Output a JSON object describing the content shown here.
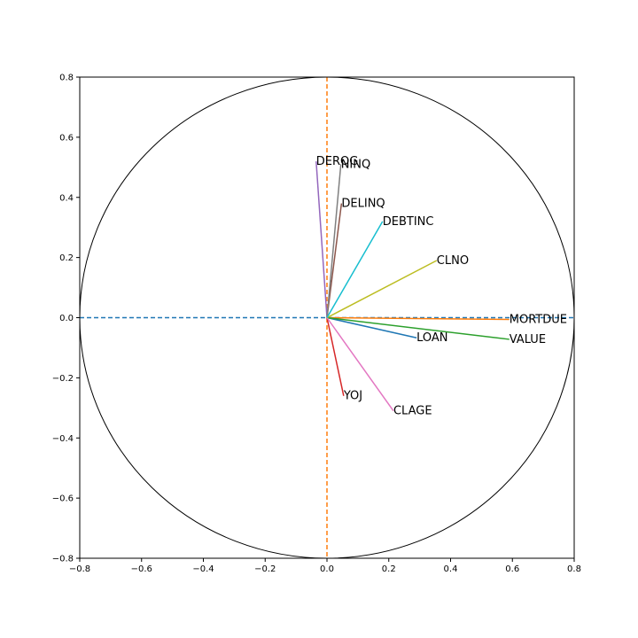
{
  "chart_data": {
    "type": "scatter",
    "title": "",
    "xlabel": "",
    "ylabel": "",
    "xlim": [
      -0.8,
      0.8
    ],
    "ylim": [
      -0.8,
      0.8
    ],
    "grid": false,
    "legend": "none",
    "xticks": [
      "−0.8",
      "−0.6",
      "−0.4",
      "−0.2",
      "0.0",
      "0.2",
      "0.4",
      "0.6",
      "0.8"
    ],
    "yticks": [
      "−0.8",
      "−0.6",
      "−0.4",
      "−0.2",
      "0.0",
      "0.2",
      "0.4",
      "0.6",
      "0.8"
    ],
    "unit_circle": {
      "radius": 0.8,
      "color": "#000000"
    },
    "reference_lines": [
      {
        "orientation": "horizontal",
        "value": 0.0,
        "style": "dashed",
        "color": "#1f77b4"
      },
      {
        "orientation": "vertical",
        "value": 0.0,
        "style": "dashed",
        "color": "#ff7f0e"
      }
    ],
    "vectors": [
      {
        "name": "LOAN",
        "x": 0.29,
        "y": -0.067,
        "color": "#1f77b4"
      },
      {
        "name": "MORTDUE",
        "x": 0.59,
        "y": -0.006,
        "color": "#ff7f0e"
      },
      {
        "name": "VALUE",
        "x": 0.59,
        "y": -0.072,
        "color": "#2ca02c"
      },
      {
        "name": "YOJ",
        "x": 0.054,
        "y": -0.26,
        "color": "#d62728"
      },
      {
        "name": "DEROG",
        "x": -0.035,
        "y": 0.52,
        "color": "#9467bd"
      },
      {
        "name": "DELINQ",
        "x": 0.047,
        "y": 0.38,
        "color": "#8c564b"
      },
      {
        "name": "CLAGE",
        "x": 0.215,
        "y": -0.31,
        "color": "#e377c2"
      },
      {
        "name": "NINQ",
        "x": 0.045,
        "y": 0.51,
        "color": "#7f7f7f"
      },
      {
        "name": "CLNO",
        "x": 0.355,
        "y": 0.19,
        "color": "#bcbd22"
      },
      {
        "name": "DEBTINC",
        "x": 0.18,
        "y": 0.32,
        "color": "#17becf"
      }
    ]
  }
}
